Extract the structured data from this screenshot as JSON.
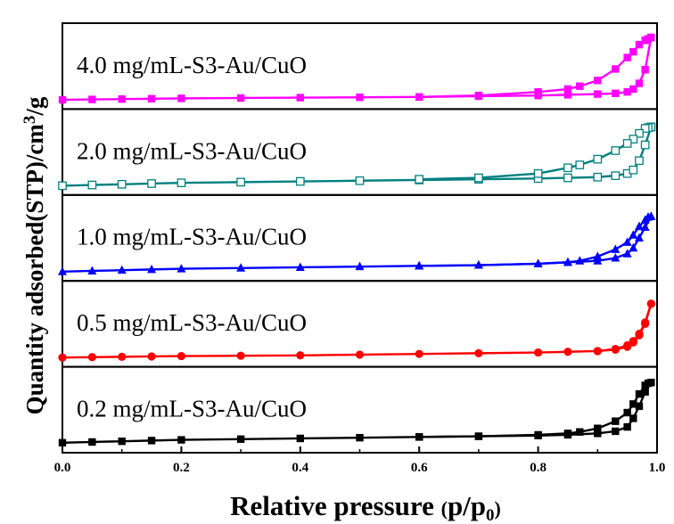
{
  "chart_data": {
    "type": "line",
    "xlabel": "Relative pressure (p/p0)",
    "ylabel": "Quantity adsorbed(STP)/cm3/g",
    "xlim": [
      0.0,
      1.0
    ],
    "x_ticks": [
      "0.0",
      "0.2",
      "0.4",
      "0.6",
      "0.8",
      "1.0"
    ],
    "y_ticks_shown": false,
    "grid": false,
    "legend": "none",
    "layout": "stacked panels, top to bottom",
    "series": [
      {
        "name": "4.0 mg/mL-S3-Au/CuO",
        "color": "#ff00ff",
        "marker": "square-filled",
        "ylim": [
          0,
          100
        ],
        "adsorption": {
          "x": [
            0.0,
            0.05,
            0.1,
            0.15,
            0.2,
            0.3,
            0.4,
            0.5,
            0.6,
            0.7,
            0.8,
            0.85,
            0.9,
            0.93,
            0.95,
            0.96,
            0.97,
            0.98,
            0.99
          ],
          "y": [
            3,
            3.5,
            4,
            4.5,
            5,
            5.5,
            6,
            6.5,
            7,
            8,
            9,
            10,
            11,
            12,
            14,
            18,
            26,
            45,
            90
          ]
        },
        "desorption": {
          "x": [
            0.99,
            0.985,
            0.98,
            0.97,
            0.96,
            0.95,
            0.93,
            0.9,
            0.87,
            0.85,
            0.8,
            0.7,
            0.6
          ],
          "y": [
            90,
            88,
            86,
            80,
            70,
            62,
            46,
            30,
            22,
            18,
            14,
            9,
            7
          ]
        }
      },
      {
        "name": "2.0 mg/mL-S3-Au/CuO",
        "color": "#008080",
        "marker": "square-open",
        "ylim": [
          0,
          100
        ],
        "adsorption": {
          "x": [
            0.0,
            0.05,
            0.1,
            0.15,
            0.2,
            0.3,
            0.4,
            0.5,
            0.6,
            0.7,
            0.8,
            0.85,
            0.9,
            0.93,
            0.95,
            0.96,
            0.97,
            0.98,
            0.99
          ],
          "y": [
            3,
            4,
            5,
            6,
            7,
            8,
            9,
            10,
            11,
            12,
            13,
            14,
            15,
            17,
            20,
            25,
            38,
            60,
            85
          ]
        },
        "desorption": {
          "x": [
            0.99,
            0.985,
            0.98,
            0.97,
            0.96,
            0.95,
            0.93,
            0.9,
            0.87,
            0.85,
            0.8,
            0.7,
            0.6
          ],
          "y": [
            85,
            84,
            83,
            76,
            68,
            62,
            52,
            40,
            32,
            28,
            20,
            14,
            12
          ]
        }
      },
      {
        "name": "1.0 mg/mL-S3-Au/CuO",
        "color": "#0000ff",
        "marker": "triangle-filled",
        "ylim": [
          0,
          100
        ],
        "adsorption": {
          "x": [
            0.0,
            0.05,
            0.1,
            0.15,
            0.2,
            0.3,
            0.4,
            0.5,
            0.6,
            0.7,
            0.8,
            0.85,
            0.9,
            0.93,
            0.95,
            0.96,
            0.97,
            0.98,
            0.99
          ],
          "y": [
            3,
            4,
            5,
            6,
            7,
            8,
            9,
            10,
            11,
            12,
            14,
            16,
            18,
            22,
            28,
            36,
            50,
            65,
            80
          ]
        },
        "desorption": {
          "x": [
            0.99,
            0.985,
            0.98,
            0.97,
            0.96,
            0.95,
            0.93,
            0.9,
            0.87,
            0.85,
            0.8,
            0.7,
            0.6
          ],
          "y": [
            80,
            79,
            75,
            66,
            54,
            44,
            34,
            24,
            18,
            16,
            14,
            12,
            11
          ]
        }
      },
      {
        "name": "0.5 mg/mL-S3-Au/CuO",
        "color": "#ff0000",
        "marker": "circle-filled",
        "ylim": [
          0,
          100
        ],
        "adsorption": {
          "x": [
            0.0,
            0.05,
            0.1,
            0.15,
            0.2,
            0.3,
            0.4,
            0.5,
            0.6,
            0.7,
            0.8,
            0.85,
            0.9,
            0.93,
            0.95,
            0.96,
            0.97,
            0.98,
            0.99
          ],
          "y": [
            3,
            3.5,
            4,
            4.5,
            5,
            5.5,
            6,
            7,
            8,
            9,
            10,
            11,
            12,
            14,
            18,
            24,
            34,
            50,
            78
          ]
        },
        "desorption": {
          "x": [
            0.99,
            0.98,
            0.97,
            0.96,
            0.95,
            0.93,
            0.9
          ],
          "y": [
            78,
            52,
            36,
            26,
            20,
            15,
            12
          ]
        }
      },
      {
        "name": "0.2 mg/mL-S3-Au/CuO",
        "color": "#000000",
        "marker": "square-filled",
        "ylim": [
          0,
          100
        ],
        "adsorption": {
          "x": [
            0.0,
            0.05,
            0.1,
            0.15,
            0.2,
            0.3,
            0.4,
            0.5,
            0.6,
            0.7,
            0.8,
            0.85,
            0.9,
            0.93,
            0.95,
            0.96,
            0.97,
            0.98,
            0.99
          ],
          "y": [
            4,
            5,
            6,
            7,
            8,
            9,
            10,
            11,
            12,
            13,
            14,
            15,
            17,
            20,
            26,
            38,
            55,
            75,
            88
          ]
        },
        "desorption": {
          "x": [
            0.99,
            0.985,
            0.98,
            0.97,
            0.96,
            0.95,
            0.93,
            0.9,
            0.87,
            0.85,
            0.8,
            0.7,
            0.6
          ],
          "y": [
            88,
            87,
            84,
            72,
            58,
            46,
            34,
            24,
            19,
            17,
            15,
            13,
            12
          ]
        }
      }
    ]
  }
}
